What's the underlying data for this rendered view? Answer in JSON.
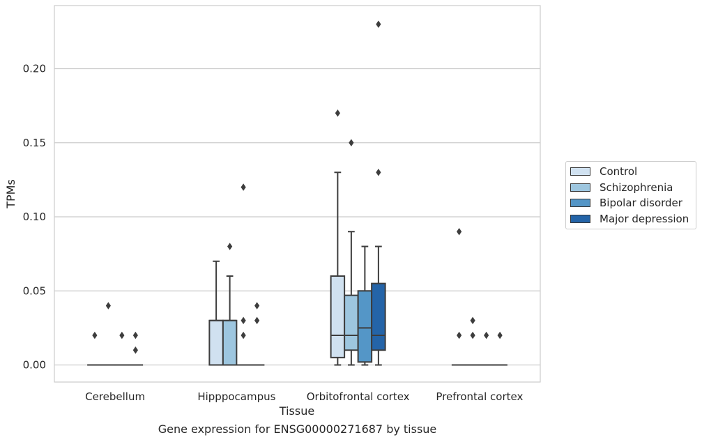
{
  "chart_data": {
    "type": "box",
    "xlabel": "Tissue",
    "ylabel": "TPMs",
    "caption": "Gene expression for ENSG00000271687 by tissue",
    "ylim": [
      -0.011,
      0.242
    ],
    "yticks": [
      "0.00",
      "0.05",
      "0.10",
      "0.15",
      "0.20"
    ],
    "ytick_values": [
      0.0,
      0.05,
      0.1,
      0.15,
      0.2
    ],
    "grid": true,
    "legend_position": "right",
    "categories": [
      "Cerebellum",
      "Hipppocampus",
      "Orbitofrontal cortex",
      "Prefrontal cortex"
    ],
    "series": [
      {
        "name": "Control",
        "color": "#d0e1f0",
        "boxes": [
          {
            "q1": 0,
            "median": 0,
            "q3": 0,
            "whisker_low": 0,
            "whisker_high": 0,
            "outliers": [
              0.02
            ]
          },
          {
            "q1": 0,
            "median": 0.03,
            "q3": 0.03,
            "whisker_low": 0,
            "whisker_high": 0.07,
            "outliers": []
          },
          {
            "q1": 0.005,
            "median": 0.02,
            "q3": 0.06,
            "whisker_low": 0,
            "whisker_high": 0.13,
            "outliers": [
              0.17
            ]
          },
          {
            "q1": 0,
            "median": 0,
            "q3": 0,
            "whisker_low": 0,
            "whisker_high": 0,
            "outliers": [
              0.02,
              0.09
            ]
          }
        ]
      },
      {
        "name": "Schizophrenia",
        "color": "#9dc6df",
        "boxes": [
          {
            "q1": 0,
            "median": 0,
            "q3": 0,
            "whisker_low": 0,
            "whisker_high": 0,
            "outliers": [
              0.04
            ]
          },
          {
            "q1": 0,
            "median": 0.03,
            "q3": 0.03,
            "whisker_low": 0,
            "whisker_high": 0.06,
            "outliers": [
              0.08
            ]
          },
          {
            "q1": 0.01,
            "median": 0.02,
            "q3": 0.047,
            "whisker_low": 0,
            "whisker_high": 0.09,
            "outliers": [
              0.15
            ]
          },
          {
            "q1": 0,
            "median": 0,
            "q3": 0,
            "whisker_low": 0,
            "whisker_high": 0,
            "outliers": [
              0.02,
              0.03
            ]
          }
        ]
      },
      {
        "name": "Bipolar disorder",
        "color": "#5496c7",
        "boxes": [
          {
            "q1": 0,
            "median": 0,
            "q3": 0,
            "whisker_low": 0,
            "whisker_high": 0,
            "outliers": [
              0.02
            ]
          },
          {
            "q1": 0,
            "median": 0,
            "q3": 0,
            "whisker_low": 0,
            "whisker_high": 0,
            "outliers": [
              0.02,
              0.03,
              0.12
            ]
          },
          {
            "q1": 0.002,
            "median": 0.025,
            "q3": 0.05,
            "whisker_low": 0,
            "whisker_high": 0.08,
            "outliers": []
          },
          {
            "q1": 0,
            "median": 0,
            "q3": 0,
            "whisker_low": 0,
            "whisker_high": 0,
            "outliers": [
              0.02
            ]
          }
        ]
      },
      {
        "name": "Major depression",
        "color": "#2464a8",
        "boxes": [
          {
            "q1": 0,
            "median": 0,
            "q3": 0,
            "whisker_low": 0,
            "whisker_high": 0,
            "outliers": [
              0.01,
              0.02
            ]
          },
          {
            "q1": 0,
            "median": 0,
            "q3": 0,
            "whisker_low": 0,
            "whisker_high": 0,
            "outliers": [
              0.03,
              0.04
            ]
          },
          {
            "q1": 0.01,
            "median": 0.02,
            "q3": 0.055,
            "whisker_low": 0,
            "whisker_high": 0.08,
            "outliers": [
              0.13,
              0.23
            ]
          },
          {
            "q1": 0,
            "median": 0,
            "q3": 0,
            "whisker_low": 0,
            "whisker_high": 0,
            "outliers": [
              0.02
            ]
          }
        ]
      }
    ]
  }
}
